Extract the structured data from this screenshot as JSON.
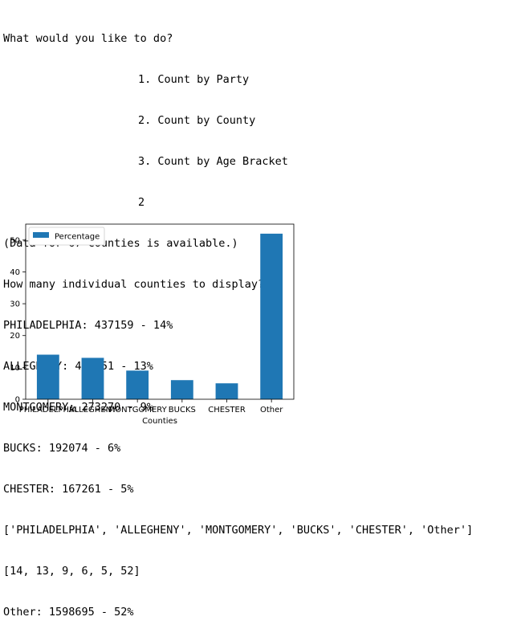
{
  "console": {
    "prompt_menu_title": "What would you like to do?",
    "menu_options": [
      "1. Count by Party",
      "2. Count by County",
      "3. Count by Age Bracket"
    ],
    "menu_choice": "2",
    "data_note": "(Data for 67 counties is available.)",
    "counties_prompt": "How many individual counties to display? 5",
    "county_results": [
      "PHILADELPHIA: 437159 - 14%",
      "ALLEGHENY: 411251 - 13%",
      "MONTGOMERY: 273270 - 9%",
      "BUCKS: 192074 - 6%",
      "CHESTER: 167261 - 5%"
    ],
    "names_list": "['PHILADELPHIA', 'ALLEGHENY', 'MONTGOMERY', 'BUCKS', 'CHESTER', 'Other']",
    "percent_list": "[14, 13, 9, 6, 5, 52]",
    "other_result": "Other: 1598695 - 52%"
  },
  "chart_data": {
    "type": "bar",
    "categories": [
      "PHILADELPHIA",
      "ALLEGHENY",
      "MONTGOMERY",
      "BUCKS",
      "CHESTER",
      "Other"
    ],
    "series": [
      {
        "name": "Percentage",
        "values": [
          14,
          13,
          9,
          6,
          5,
          52
        ]
      }
    ],
    "title": "",
    "xlabel": "Counties",
    "ylabel": "",
    "ylim": [
      0,
      55
    ],
    "yticks": [
      0,
      10,
      20,
      30,
      40,
      50
    ],
    "grid": false,
    "legend_position": "top-left",
    "bar_color": "#1f77b4"
  }
}
